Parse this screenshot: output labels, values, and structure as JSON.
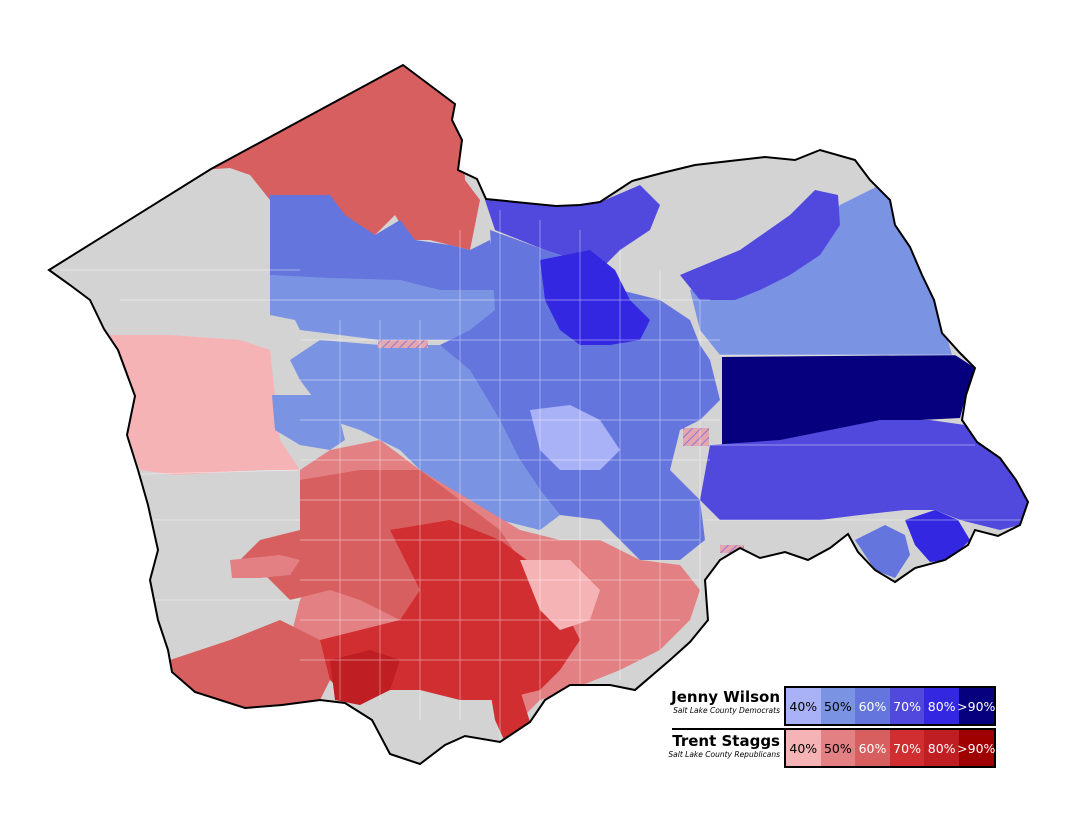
{
  "legend": {
    "dem": {
      "candidate": "Jenny Wilson",
      "party": "Salt Lake County Democrats",
      "bins": [
        {
          "label": "40%",
          "color": "#a9b2f7",
          "text": "#000000"
        },
        {
          "label": "50%",
          "color": "#7b93e3",
          "text": "#000000"
        },
        {
          "label": "60%",
          "color": "#6476dd",
          "text": "#ffffff"
        },
        {
          "label": "70%",
          "color": "#5149de",
          "text": "#ffffff"
        },
        {
          "label": "80%",
          "color": "#3327e1",
          "text": "#ffffff"
        },
        {
          "label": ">90%",
          "color": "#06007f",
          "text": "#ffffff"
        }
      ]
    },
    "rep": {
      "candidate": "Trent Staggs",
      "party": "Salt Lake County Republicans",
      "bins": [
        {
          "label": "40%",
          "color": "#f6b3b6",
          "text": "#000000"
        },
        {
          "label": "50%",
          "color": "#e38083",
          "text": "#000000"
        },
        {
          "label": "60%",
          "color": "#d75f60",
          "text": "#ffffff"
        },
        {
          "label": "70%",
          "color": "#d02e31",
          "text": "#ffffff"
        },
        {
          "label": "80%",
          "color": "#bf1e23",
          "text": "#ffffff"
        },
        {
          "label": ">90%",
          "color": "#9f0000",
          "text": "#ffffff"
        }
      ]
    }
  },
  "colors": {
    "no_data": "#d3d3d3",
    "county_border": "#000000",
    "precinct_line": "#ffffff",
    "tie_hatch": "#c98a9a"
  }
}
